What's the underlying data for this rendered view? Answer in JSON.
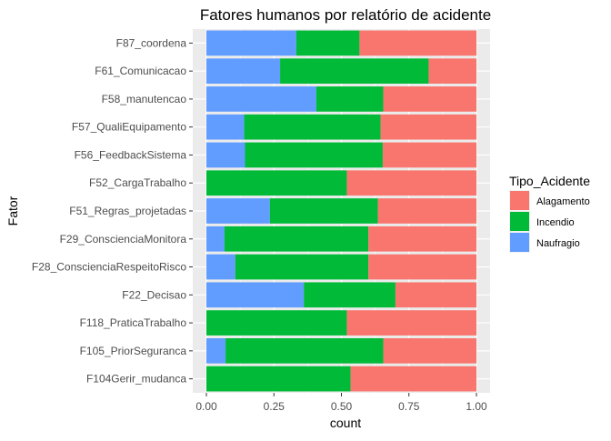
{
  "chart_data": {
    "type": "bar",
    "orientation": "horizontal",
    "stacked": "fill",
    "title": "Fatores humanos por relatório de acidente",
    "xlabel": "count",
    "ylabel": "Fator",
    "xlim": [
      0,
      1
    ],
    "x_ticks": [
      "0.00",
      "0.25",
      "0.50",
      "0.75",
      "1.00"
    ],
    "grid": true,
    "legend_title": "Tipo_Acidente",
    "legend_position": "right",
    "categories": [
      "F87_coordena",
      "F61_Comunicacao",
      "F58_manutencao",
      "F57_QualiEquipamento",
      "F56_FeedbackSistema",
      "F52_CargaTrabalho",
      "F51_Regras_projetadas",
      "F29_ConscienciaMonitora",
      "F28_ConscienciaRespeitoRisco",
      "F22_Decisao",
      "F118_PraticaTrabalho",
      "F105_PriorSeguranca",
      "F104Gerir_mudanca"
    ],
    "series": [
      {
        "name": "Naufragio",
        "color": "#619CFF",
        "values": [
          0.333,
          0.273,
          0.407,
          0.14,
          0.143,
          0.0,
          0.235,
          0.067,
          0.107,
          0.361,
          0.0,
          0.071,
          0.0
        ]
      },
      {
        "name": "Incendio",
        "color": "#00BA38",
        "values": [
          0.234,
          0.55,
          0.248,
          0.505,
          0.51,
          0.52,
          0.4,
          0.533,
          0.493,
          0.339,
          0.52,
          0.584,
          0.534
        ]
      },
      {
        "name": "Alagamento",
        "color": "#F8766D",
        "values": [
          0.433,
          0.177,
          0.345,
          0.355,
          0.347,
          0.48,
          0.365,
          0.4,
          0.4,
          0.3,
          0.48,
          0.345,
          0.466
        ]
      }
    ],
    "legend_order": [
      "Alagamento",
      "Incendio",
      "Naufragio"
    ]
  }
}
